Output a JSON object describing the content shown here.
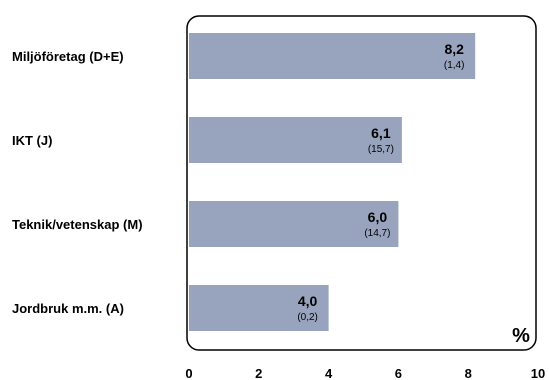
{
  "chart_data": {
    "type": "bar",
    "orientation": "horizontal",
    "categories": [
      "Miljöföretag (D+E)",
      "IKT (J)",
      "Teknik/vetenskap (M)",
      "Jordbruk m.m. (A)"
    ],
    "values": [
      8.2,
      6.1,
      6.0,
      4.0
    ],
    "value_labels": [
      "8,2",
      "6,1",
      "6,0",
      "4,0"
    ],
    "secondary_labels": [
      "(1,4)",
      "(15,7)",
      "(14,7)",
      "(0,2)"
    ],
    "xlim": [
      0,
      10
    ],
    "x_ticks": [
      0,
      2,
      4,
      6,
      8,
      10
    ],
    "unit_label": "%",
    "bar_color": "#98A4BD",
    "grid": false
  }
}
